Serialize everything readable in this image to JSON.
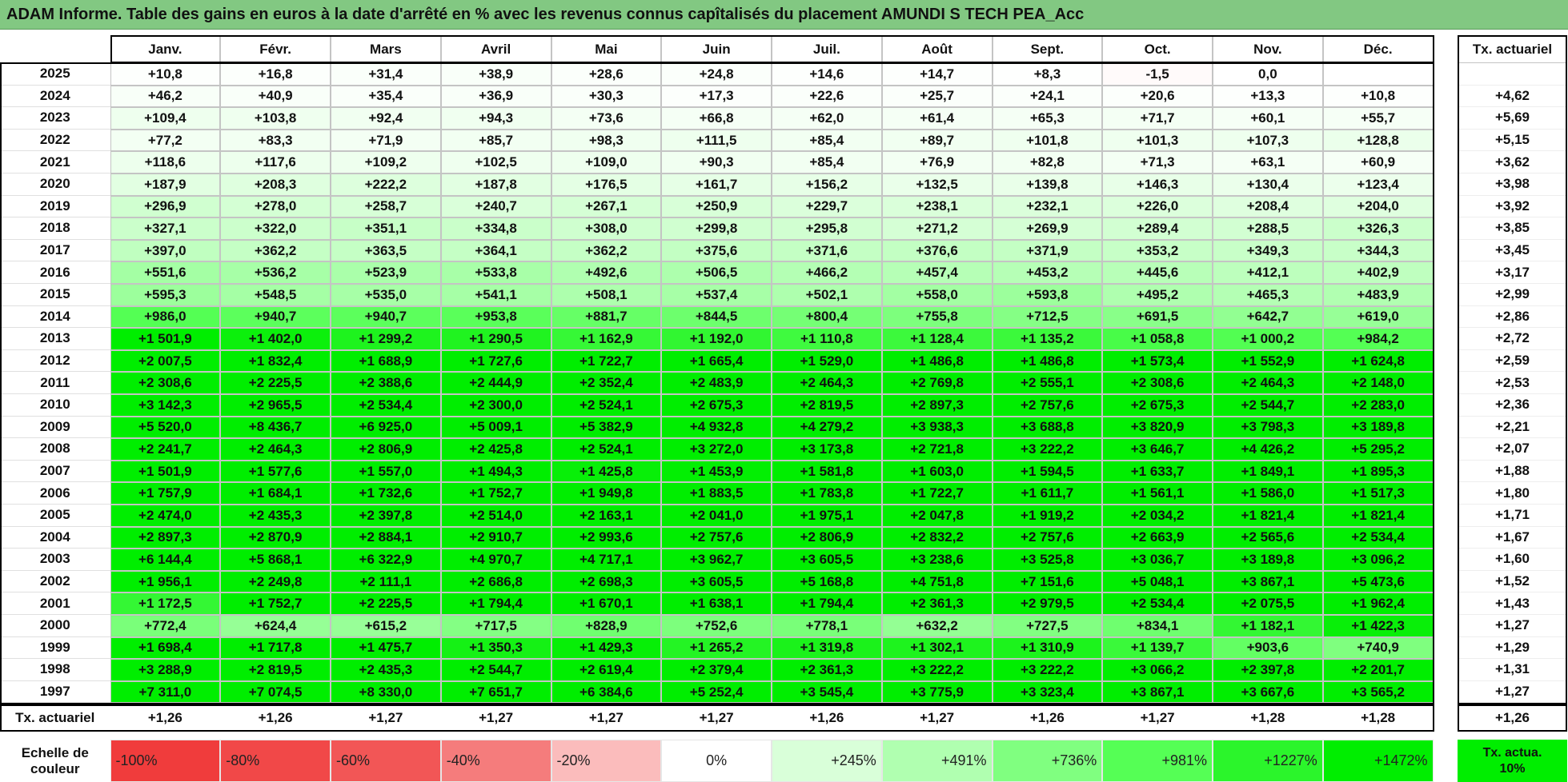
{
  "title": "ADAM Informe. Table des gains en euros à la date d'arrêté en % avec les revenus connus capîtalisés du placement AMUNDI S TECH PEA_Acc",
  "table": {
    "columns": [
      "Janv.",
      "Févr.",
      "Mars",
      "Avril",
      "Mai",
      "Juin",
      "Juil.",
      "Août",
      "Sept.",
      "Oct.",
      "Nov.",
      "Déc."
    ],
    "tx_header": "Tx. actuariel",
    "rows": [
      {
        "year": "2025",
        "cells": [
          "+10,8",
          "+16,8",
          "+31,4",
          "+38,9",
          "+28,6",
          "+24,8",
          "+14,6",
          "+14,7",
          "+8,3",
          "-1,5",
          "0,0",
          null
        ],
        "tx": null
      },
      {
        "year": "2024",
        "cells": [
          "+46,2",
          "+40,9",
          "+35,4",
          "+36,9",
          "+30,3",
          "+17,3",
          "+22,6",
          "+25,7",
          "+24,1",
          "+20,6",
          "+13,3",
          "+10,8"
        ],
        "tx": "+4,62"
      },
      {
        "year": "2023",
        "cells": [
          "+109,4",
          "+103,8",
          "+92,4",
          "+94,3",
          "+73,6",
          "+66,8",
          "+62,0",
          "+61,4",
          "+65,3",
          "+71,7",
          "+60,1",
          "+55,7"
        ],
        "tx": "+5,69"
      },
      {
        "year": "2022",
        "cells": [
          "+77,2",
          "+83,3",
          "+71,9",
          "+85,7",
          "+98,3",
          "+111,5",
          "+85,4",
          "+89,7",
          "+101,8",
          "+101,3",
          "+107,3",
          "+128,8"
        ],
        "tx": "+5,15"
      },
      {
        "year": "2021",
        "cells": [
          "+118,6",
          "+117,6",
          "+109,2",
          "+102,5",
          "+109,0",
          "+90,3",
          "+85,4",
          "+76,9",
          "+82,8",
          "+71,3",
          "+63,1",
          "+60,9"
        ],
        "tx": "+3,62"
      },
      {
        "year": "2020",
        "cells": [
          "+187,9",
          "+208,3",
          "+222,2",
          "+187,8",
          "+176,5",
          "+161,7",
          "+156,2",
          "+132,5",
          "+139,8",
          "+146,3",
          "+130,4",
          "+123,4"
        ],
        "tx": "+3,98"
      },
      {
        "year": "2019",
        "cells": [
          "+296,9",
          "+278,0",
          "+258,7",
          "+240,7",
          "+267,1",
          "+250,9",
          "+229,7",
          "+238,1",
          "+232,1",
          "+226,0",
          "+208,4",
          "+204,0"
        ],
        "tx": "+3,92"
      },
      {
        "year": "2018",
        "cells": [
          "+327,1",
          "+322,0",
          "+351,1",
          "+334,8",
          "+308,0",
          "+299,8",
          "+295,8",
          "+271,2",
          "+269,9",
          "+289,4",
          "+288,5",
          "+326,3"
        ],
        "tx": "+3,85"
      },
      {
        "year": "2017",
        "cells": [
          "+397,0",
          "+362,2",
          "+363,5",
          "+364,1",
          "+362,2",
          "+375,6",
          "+371,6",
          "+376,6",
          "+371,9",
          "+353,2",
          "+349,3",
          "+344,3"
        ],
        "tx": "+3,45"
      },
      {
        "year": "2016",
        "cells": [
          "+551,6",
          "+536,2",
          "+523,9",
          "+533,8",
          "+492,6",
          "+506,5",
          "+466,2",
          "+457,4",
          "+453,2",
          "+445,6",
          "+412,1",
          "+402,9"
        ],
        "tx": "+3,17"
      },
      {
        "year": "2015",
        "cells": [
          "+595,3",
          "+548,5",
          "+535,0",
          "+541,1",
          "+508,1",
          "+537,4",
          "+502,1",
          "+558,0",
          "+593,8",
          "+495,2",
          "+465,3",
          "+483,9"
        ],
        "tx": "+2,99"
      },
      {
        "year": "2014",
        "cells": [
          "+986,0",
          "+940,7",
          "+940,7",
          "+953,8",
          "+881,7",
          "+844,5",
          "+800,4",
          "+755,8",
          "+712,5",
          "+691,5",
          "+642,7",
          "+619,0"
        ],
        "tx": "+2,86"
      },
      {
        "year": "2013",
        "cells": [
          "+1 501,9",
          "+1 402,0",
          "+1 299,2",
          "+1 290,5",
          "+1 162,9",
          "+1 192,0",
          "+1 110,8",
          "+1 128,4",
          "+1 135,2",
          "+1 058,8",
          "+1 000,2",
          "+984,2"
        ],
        "tx": "+2,72"
      },
      {
        "year": "2012",
        "cells": [
          "+2 007,5",
          "+1 832,4",
          "+1 688,9",
          "+1 727,6",
          "+1 722,7",
          "+1 665,4",
          "+1 529,0",
          "+1 486,8",
          "+1 486,8",
          "+1 573,4",
          "+1 552,9",
          "+1 624,8"
        ],
        "tx": "+2,59"
      },
      {
        "year": "2011",
        "cells": [
          "+2 308,6",
          "+2 225,5",
          "+2 388,6",
          "+2 444,9",
          "+2 352,4",
          "+2 483,9",
          "+2 464,3",
          "+2 769,8",
          "+2 555,1",
          "+2 308,6",
          "+2 464,3",
          "+2 148,0"
        ],
        "tx": "+2,53"
      },
      {
        "year": "2010",
        "cells": [
          "+3 142,3",
          "+2 965,5",
          "+2 534,4",
          "+2 300,0",
          "+2 524,1",
          "+2 675,3",
          "+2 819,5",
          "+2 897,3",
          "+2 757,6",
          "+2 675,3",
          "+2 544,7",
          "+2 283,0"
        ],
        "tx": "+2,36"
      },
      {
        "year": "2009",
        "cells": [
          "+5 520,0",
          "+8 436,7",
          "+6 925,0",
          "+5 009,1",
          "+5 382,9",
          "+4 932,8",
          "+4 279,2",
          "+3 938,3",
          "+3 688,8",
          "+3 820,9",
          "+3 798,3",
          "+3 189,8"
        ],
        "tx": "+2,21"
      },
      {
        "year": "2008",
        "cells": [
          "+2 241,7",
          "+2 464,3",
          "+2 806,9",
          "+2 425,8",
          "+2 524,1",
          "+3 272,0",
          "+3 173,8",
          "+2 721,8",
          "+3 222,2",
          "+3 646,7",
          "+4 426,2",
          "+5 295,2"
        ],
        "tx": "+2,07"
      },
      {
        "year": "2007",
        "cells": [
          "+1 501,9",
          "+1 577,6",
          "+1 557,0",
          "+1 494,3",
          "+1 425,8",
          "+1 453,9",
          "+1 581,8",
          "+1 603,0",
          "+1 594,5",
          "+1 633,7",
          "+1 849,1",
          "+1 895,3"
        ],
        "tx": "+1,88"
      },
      {
        "year": "2006",
        "cells": [
          "+1 757,9",
          "+1 684,1",
          "+1 732,6",
          "+1 752,7",
          "+1 949,8",
          "+1 883,5",
          "+1 783,8",
          "+1 722,7",
          "+1 611,7",
          "+1 561,1",
          "+1 586,0",
          "+1 517,3"
        ],
        "tx": "+1,80"
      },
      {
        "year": "2005",
        "cells": [
          "+2 474,0",
          "+2 435,3",
          "+2 397,8",
          "+2 514,0",
          "+2 163,1",
          "+2 041,0",
          "+1 975,1",
          "+2 047,8",
          "+1 919,2",
          "+2 034,2",
          "+1 821,4",
          "+1 821,4"
        ],
        "tx": "+1,71"
      },
      {
        "year": "2004",
        "cells": [
          "+2 897,3",
          "+2 870,9",
          "+2 884,1",
          "+2 910,7",
          "+2 993,6",
          "+2 757,6",
          "+2 806,9",
          "+2 832,2",
          "+2 757,6",
          "+2 663,9",
          "+2 565,6",
          "+2 534,4"
        ],
        "tx": "+1,67"
      },
      {
        "year": "2003",
        "cells": [
          "+6 144,4",
          "+5 868,1",
          "+6 322,9",
          "+4 970,7",
          "+4 717,1",
          "+3 962,7",
          "+3 605,5",
          "+3 238,6",
          "+3 525,8",
          "+3 036,7",
          "+3 189,8",
          "+3 096,2"
        ],
        "tx": "+1,60"
      },
      {
        "year": "2002",
        "cells": [
          "+1 956,1",
          "+2 249,8",
          "+2 111,1",
          "+2 686,8",
          "+2 698,3",
          "+3 605,5",
          "+5 168,8",
          "+4 751,8",
          "+7 151,6",
          "+5 048,1",
          "+3 867,1",
          "+5 473,6"
        ],
        "tx": "+1,52"
      },
      {
        "year": "2001",
        "cells": [
          "+1 172,5",
          "+1 752,7",
          "+2 225,5",
          "+1 794,4",
          "+1 670,1",
          "+1 638,1",
          "+1 794,4",
          "+2 361,3",
          "+2 979,5",
          "+2 534,4",
          "+2 075,5",
          "+1 962,4"
        ],
        "tx": "+1,43"
      },
      {
        "year": "2000",
        "cells": [
          "+772,4",
          "+624,4",
          "+615,2",
          "+717,5",
          "+828,9",
          "+752,6",
          "+778,1",
          "+632,2",
          "+727,5",
          "+834,1",
          "+1 182,1",
          "+1 422,3"
        ],
        "tx": "+1,27"
      },
      {
        "year": "1999",
        "cells": [
          "+1 698,4",
          "+1 717,8",
          "+1 475,7",
          "+1 350,3",
          "+1 429,3",
          "+1 265,2",
          "+1 319,8",
          "+1 302,1",
          "+1 310,9",
          "+1 139,7",
          "+903,6",
          "+740,9"
        ],
        "tx": "+1,29"
      },
      {
        "year": "1998",
        "cells": [
          "+3 288,9",
          "+2 819,5",
          "+2 435,3",
          "+2 544,7",
          "+2 619,4",
          "+2 379,4",
          "+2 361,3",
          "+3 222,2",
          "+3 222,2",
          "+3 066,2",
          "+2 397,8",
          "+2 201,7"
        ],
        "tx": "+1,31"
      },
      {
        "year": "1997",
        "cells": [
          "+7 311,0",
          "+7 074,5",
          "+8 330,0",
          "+7 651,7",
          "+6 384,6",
          "+5 252,4",
          "+3 545,4",
          "+3 775,9",
          "+3 323,4",
          "+3 867,1",
          "+3 667,6",
          "+3 565,2"
        ],
        "tx": "+1,27"
      }
    ],
    "footer": {
      "label": "Tx. actuariel",
      "cells": [
        "+1,26",
        "+1,26",
        "+1,27",
        "+1,27",
        "+1,27",
        "+1,27",
        "+1,26",
        "+1,27",
        "+1,26",
        "+1,27",
        "+1,28",
        "+1,28"
      ],
      "tx": "+1,26"
    }
  },
  "scale": {
    "label": "Echelle de couleur",
    "items": [
      {
        "label": "-100%",
        "color": "#f03c3c"
      },
      {
        "label": "-80%",
        "color": "#f14848"
      },
      {
        "label": "-60%",
        "color": "#f25656"
      },
      {
        "label": "-40%",
        "color": "#f57c7c"
      },
      {
        "label": "-20%",
        "color": "#fbbcbc"
      },
      {
        "label": "0%",
        "color": "#ffffff"
      },
      {
        "label": "+245%",
        "color": "#d9ffd9"
      },
      {
        "label": "+491%",
        "color": "#b0ffb0"
      },
      {
        "label": "+736%",
        "color": "#80ff80"
      },
      {
        "label": "+981%",
        "color": "#55ff55"
      },
      {
        "label": "+1227%",
        "color": "#2bf52b"
      },
      {
        "label": "+1472%",
        "color": "#00ee00"
      }
    ],
    "tx_label": "Tx. actua. 10%",
    "tx_color": "#00ee00"
  }
}
